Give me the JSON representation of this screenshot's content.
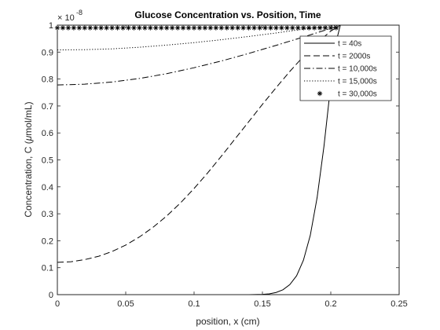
{
  "chart_data": {
    "type": "line",
    "title": "Glucose Concentration vs. Position, Time",
    "xlabel": "position, x (cm)",
    "ylabel_prefix": "Concentration, C (",
    "ylabel_mu": "μ",
    "ylabel_suffix": "mol/mL)",
    "y_exponent_base": "× 10",
    "y_exponent": "-8",
    "xlim": [
      0,
      0.25
    ],
    "ylim": [
      0,
      1
    ],
    "x_ticks": [
      "0",
      "0.05",
      "0.1",
      "0.15",
      "0.2",
      "0.25"
    ],
    "y_ticks": [
      "0",
      "0.1",
      "0.2",
      "0.3",
      "0.4",
      "0.5",
      "0.6",
      "0.7",
      "0.8",
      "0.9",
      "1"
    ],
    "grid": false,
    "legend_position": "top-right",
    "series": [
      {
        "name": "t = 40s",
        "style": "solid",
        "color": "#000000",
        "x": [
          0,
          0.14,
          0.15,
          0.155,
          0.16,
          0.165,
          0.17,
          0.175,
          0.18,
          0.185,
          0.19,
          0.195,
          0.2,
          0.203,
          0.207
        ],
        "y": [
          0,
          0,
          0.001,
          0.003,
          0.008,
          0.018,
          0.037,
          0.07,
          0.128,
          0.22,
          0.36,
          0.55,
          0.78,
          0.92,
          1.0
        ]
      },
      {
        "name": "t = 2000s",
        "style": "dashed",
        "color": "#000000",
        "x": [
          0,
          0.01,
          0.02,
          0.03,
          0.04,
          0.05,
          0.06,
          0.07,
          0.08,
          0.09,
          0.1,
          0.11,
          0.12,
          0.13,
          0.14,
          0.15,
          0.16,
          0.17,
          0.18,
          0.19,
          0.2,
          0.207
        ],
        "y": [
          0.12,
          0.122,
          0.13,
          0.142,
          0.16,
          0.184,
          0.214,
          0.25,
          0.292,
          0.34,
          0.394,
          0.452,
          0.514,
          0.578,
          0.642,
          0.706,
          0.768,
          0.828,
          0.884,
          0.934,
          0.978,
          1.0
        ]
      },
      {
        "name": "t = 10,000s",
        "style": "dashdot",
        "color": "#000000",
        "x": [
          0,
          0.02,
          0.04,
          0.06,
          0.08,
          0.1,
          0.12,
          0.14,
          0.16,
          0.18,
          0.2,
          0.207
        ],
        "y": [
          0.778,
          0.781,
          0.789,
          0.802,
          0.82,
          0.842,
          0.867,
          0.895,
          0.925,
          0.956,
          0.988,
          1.0
        ]
      },
      {
        "name": "t = 15,000s",
        "style": "dotted",
        "color": "#000000",
        "x": [
          0,
          0.02,
          0.04,
          0.06,
          0.08,
          0.1,
          0.12,
          0.14,
          0.16,
          0.18,
          0.2,
          0.207
        ],
        "y": [
          0.908,
          0.909,
          0.912,
          0.918,
          0.926,
          0.935,
          0.946,
          0.958,
          0.971,
          0.985,
          0.997,
          1.0
        ]
      },
      {
        "name": "t = 30,000s",
        "style": "asterisk",
        "color": "#000000",
        "x": [
          0,
          0.004,
          0.008,
          0.012,
          0.016,
          0.02,
          0.024,
          0.028,
          0.032,
          0.036,
          0.04,
          0.044,
          0.048,
          0.052,
          0.056,
          0.06,
          0.064,
          0.068,
          0.072,
          0.076,
          0.08,
          0.084,
          0.088,
          0.092,
          0.096,
          0.1,
          0.104,
          0.108,
          0.112,
          0.116,
          0.12,
          0.124,
          0.128,
          0.132,
          0.136,
          0.14,
          0.144,
          0.148,
          0.152,
          0.156,
          0.16,
          0.164,
          0.168,
          0.172,
          0.176,
          0.18,
          0.184,
          0.188,
          0.192,
          0.196,
          0.2,
          0.204
        ],
        "y": [
          0.99,
          0.99,
          0.99,
          0.99,
          0.99,
          0.99,
          0.99,
          0.99,
          0.99,
          0.99,
          0.99,
          0.99,
          0.99,
          0.99,
          0.99,
          0.99,
          0.99,
          0.99,
          0.99,
          0.99,
          0.99,
          0.99,
          0.99,
          0.99,
          0.99,
          0.99,
          0.99,
          0.99,
          0.99,
          0.99,
          0.99,
          0.99,
          0.99,
          0.99,
          0.99,
          0.99,
          0.99,
          0.99,
          0.99,
          0.99,
          0.99,
          0.99,
          0.99,
          0.99,
          0.99,
          0.99,
          0.99,
          0.99,
          0.99,
          0.99,
          0.99,
          0.99
        ]
      }
    ]
  }
}
